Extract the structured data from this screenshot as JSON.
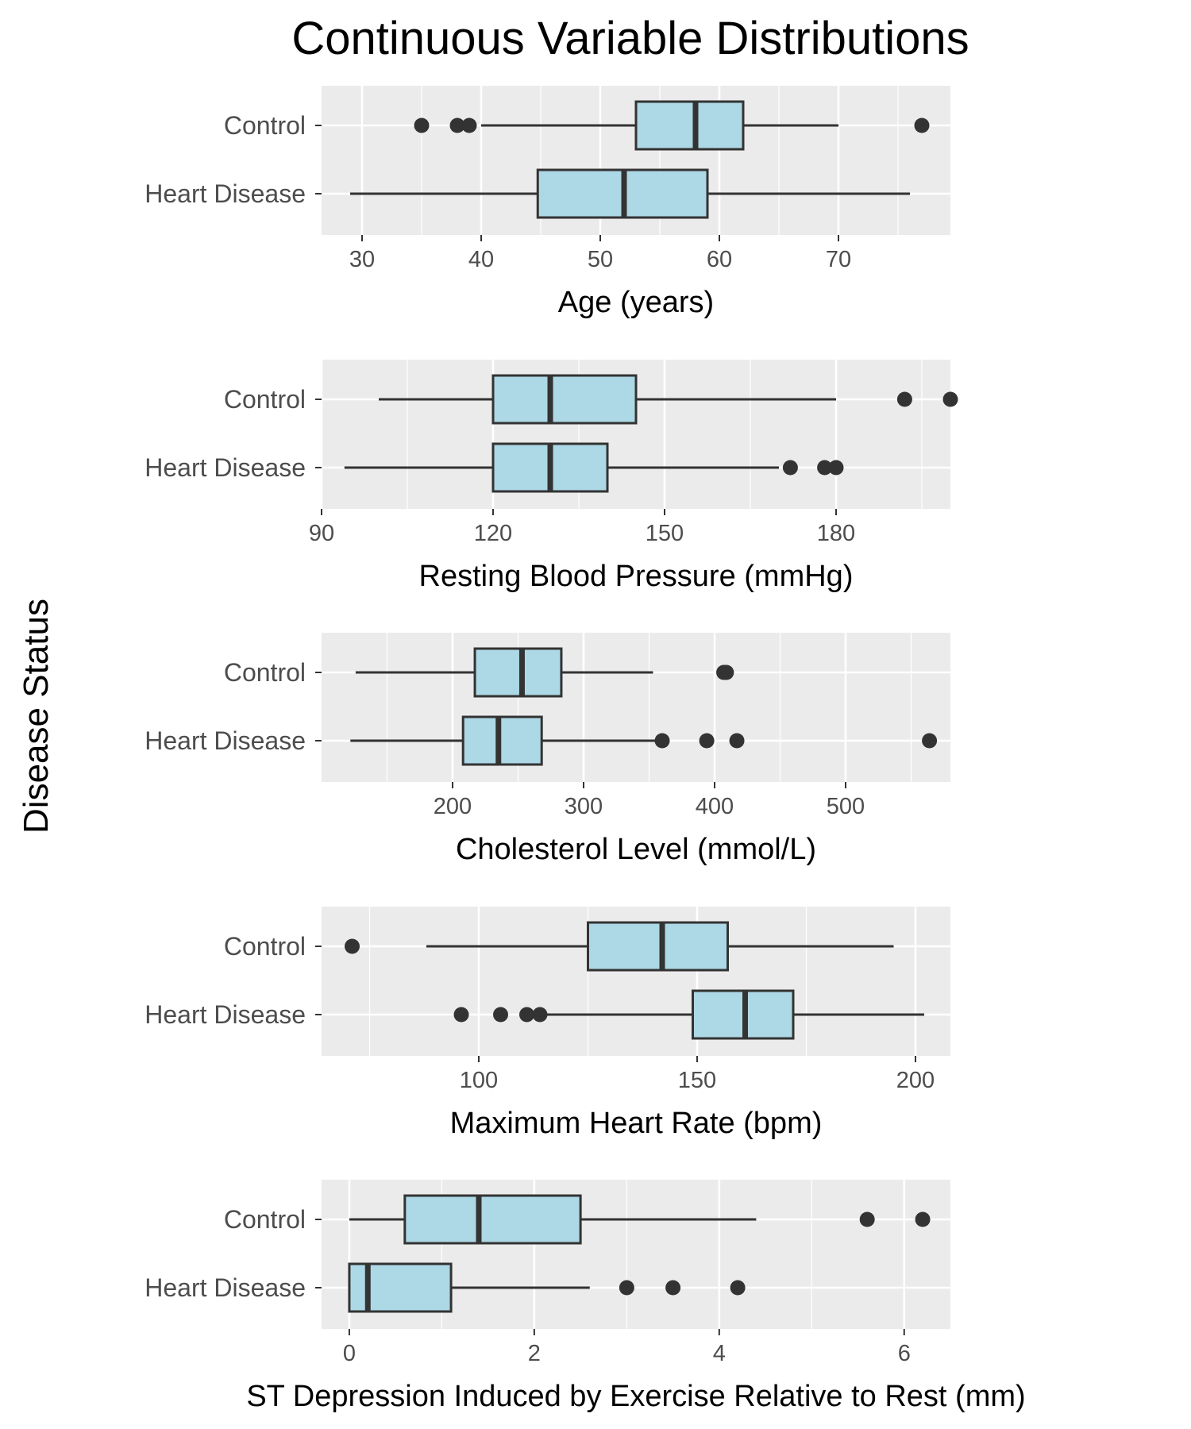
{
  "chart_data": {
    "type": "boxplot",
    "title": "Continuous Variable Distributions",
    "ylabel": "Disease Status",
    "grid": true,
    "legend": "none",
    "colors": {
      "panel_bg": "#ebebeb",
      "box_fill": "#add8e6",
      "line": "#333333",
      "grid": "#ffffff",
      "tick_text": "#4d4d4d"
    },
    "groups": [
      "Control",
      "Heart Disease"
    ],
    "panels": [
      {
        "xlabel": "Age (years)",
        "xlim": [
          26.6,
          79.4
        ],
        "ticks": [
          30,
          40,
          50,
          60,
          70
        ],
        "boxes": [
          {
            "group": "Control",
            "whisker_low": 40,
            "q1": 53,
            "median": 58,
            "q3": 62,
            "whisker_high": 70,
            "outliers": [
              35,
              38,
              39,
              77
            ]
          },
          {
            "group": "Heart Disease",
            "whisker_low": 29,
            "q1": 44.75,
            "median": 52,
            "q3": 59,
            "whisker_high": 76,
            "outliers": []
          }
        ]
      },
      {
        "xlabel": "Resting Blood Pressure (mmHg)",
        "xlim": [
          90,
          200
        ],
        "ticks": [
          90,
          120,
          150,
          180
        ],
        "boxes": [
          {
            "group": "Control",
            "whisker_low": 100,
            "q1": 120,
            "median": 130,
            "q3": 145,
            "whisker_high": 180,
            "outliers": [
              192,
              200
            ]
          },
          {
            "group": "Heart Disease",
            "whisker_low": 94,
            "q1": 120,
            "median": 130,
            "q3": 140,
            "whisker_high": 170,
            "outliers": [
              172,
              178,
              180
            ]
          }
        ]
      },
      {
        "xlabel": "Cholesterol Level (mmol/L)",
        "xlim": [
          100,
          580
        ],
        "ticks": [
          200,
          300,
          400,
          500
        ],
        "boxes": [
          {
            "group": "Control",
            "whisker_low": 126,
            "q1": 217,
            "median": 253,
            "q3": 283,
            "whisker_high": 353,
            "outliers": [
              407,
              409
            ]
          },
          {
            "group": "Heart Disease",
            "whisker_low": 122,
            "q1": 208,
            "median": 235,
            "q3": 268,
            "whisker_high": 355,
            "outliers": [
              360,
              394,
              417,
              564
            ]
          }
        ]
      },
      {
        "xlabel": "Maximum Heart Rate (bpm)",
        "xlim": [
          64,
          208
        ],
        "ticks": [
          100,
          150,
          200
        ],
        "boxes": [
          {
            "group": "Control",
            "whisker_low": 88,
            "q1": 125,
            "median": 142,
            "q3": 157,
            "whisker_high": 195,
            "outliers": [
              71
            ]
          },
          {
            "group": "Heart Disease",
            "whisker_low": 115,
            "q1": 149,
            "median": 161,
            "q3": 172,
            "whisker_high": 202,
            "outliers": [
              96,
              105,
              111,
              114
            ]
          }
        ]
      },
      {
        "xlabel": "ST Depression Induced by Exercise Relative to Rest (mm)",
        "xlim": [
          -0.3,
          6.5
        ],
        "ticks": [
          0,
          2,
          4,
          6
        ],
        "boxes": [
          {
            "group": "Control",
            "whisker_low": 0,
            "q1": 0.6,
            "median": 1.4,
            "q3": 2.5,
            "whisker_high": 4.4,
            "outliers": [
              5.6,
              6.2
            ]
          },
          {
            "group": "Heart Disease",
            "whisker_low": 0,
            "q1": 0,
            "median": 0.2,
            "q3": 1.1,
            "whisker_high": 2.6,
            "outliers": [
              3.0,
              3.5,
              4.2
            ]
          }
        ]
      }
    ]
  }
}
